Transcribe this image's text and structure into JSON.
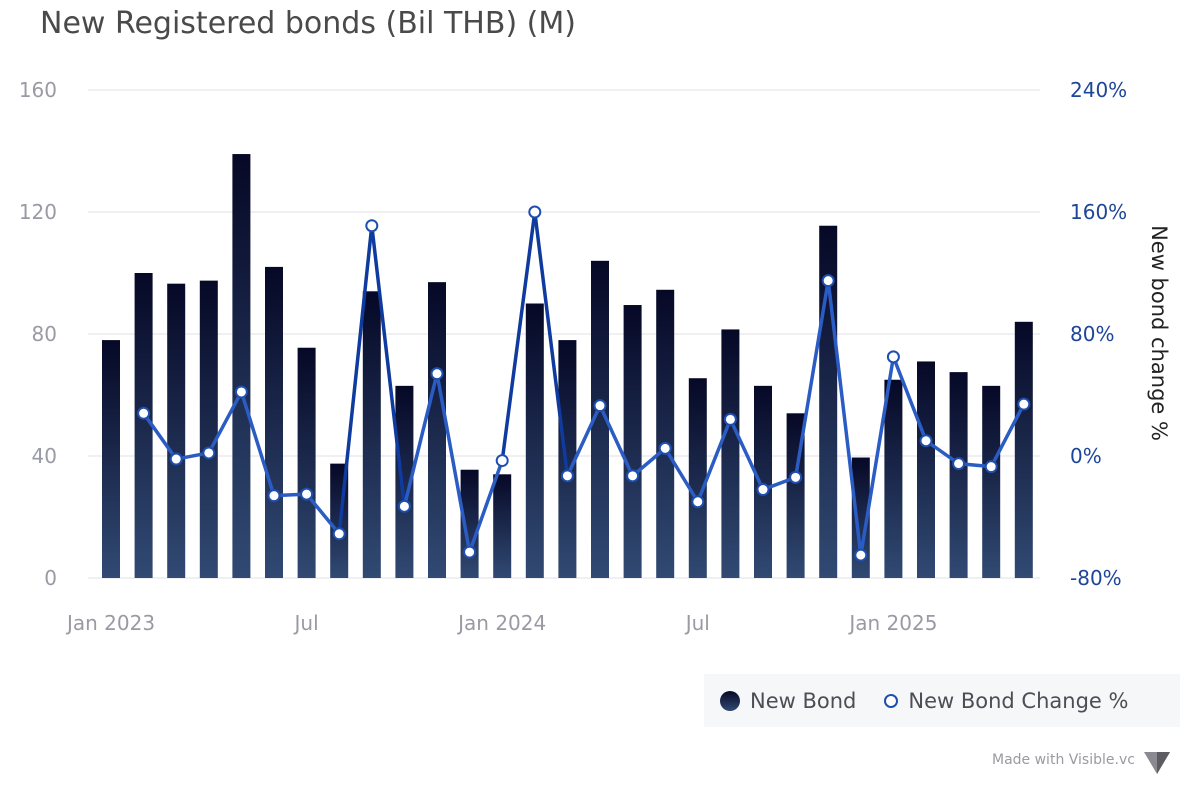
{
  "chart_data": {
    "type": "bar",
    "title": "New Registered bonds (Bil THB) (M)",
    "categories": [
      "2023-01",
      "2023-02",
      "2023-03",
      "2023-04",
      "2023-05",
      "2023-06",
      "2023-07",
      "2023-08",
      "2023-09",
      "2023-10",
      "2023-11",
      "2023-12",
      "2024-01",
      "2024-02",
      "2024-03",
      "2024-04",
      "2024-05",
      "2024-06",
      "2024-07",
      "2024-08",
      "2024-09",
      "2024-10",
      "2024-11",
      "2024-12",
      "2025-01",
      "2025-02",
      "2025-03",
      "2025-04",
      "2025-05"
    ],
    "x_tick_labels": [
      {
        "category": "2023-01",
        "label": "Jan 2023"
      },
      {
        "category": "2023-07",
        "label": "Jul"
      },
      {
        "category": "2024-01",
        "label": "Jan 2024"
      },
      {
        "category": "2024-07",
        "label": "Jul"
      },
      {
        "category": "2025-01",
        "label": "Jan 2025"
      }
    ],
    "series": [
      {
        "name": "New Bond",
        "type": "bar",
        "axis": "left",
        "values": [
          78,
          100,
          96.5,
          97.5,
          139,
          102,
          75.5,
          37.5,
          94,
          63,
          97,
          35.5,
          34,
          90,
          78,
          104,
          89.5,
          94.5,
          65.5,
          81.5,
          63,
          54,
          115.5,
          39.5,
          65,
          71,
          67.5,
          63,
          84
        ]
      },
      {
        "name": "New Bond Change %",
        "type": "line",
        "axis": "right",
        "values": [
          null,
          28,
          -2,
          2,
          42,
          -26,
          -25,
          -51,
          151,
          -33,
          54,
          -63,
          -3,
          160,
          -13,
          33,
          -13,
          5,
          -30,
          24,
          -22,
          -14,
          115,
          -65,
          65,
          10,
          -5,
          -7,
          34
        ]
      }
    ],
    "y_left": {
      "ticks": [
        0,
        40,
        80,
        120,
        160
      ],
      "ylim": [
        0,
        160
      ]
    },
    "y_right": {
      "ticks": [
        "-80%",
        "0%",
        "80%",
        "160%",
        "240%"
      ],
      "ylim": [
        -80,
        240
      ],
      "label": "New bond change %"
    },
    "grid": true,
    "legend_position": "bottom-right",
    "colors": {
      "bar_top": "#060826",
      "bar_bottom": "#314a73",
      "line": "#2b5cc4",
      "line_dark": "#0f3a9e",
      "marker_stroke": "#1e4fb0"
    }
  },
  "legend": {
    "bar_label": "New Bond",
    "line_label": "New Bond Change %"
  },
  "footer": {
    "watermark": "Made with Visible.vc"
  }
}
